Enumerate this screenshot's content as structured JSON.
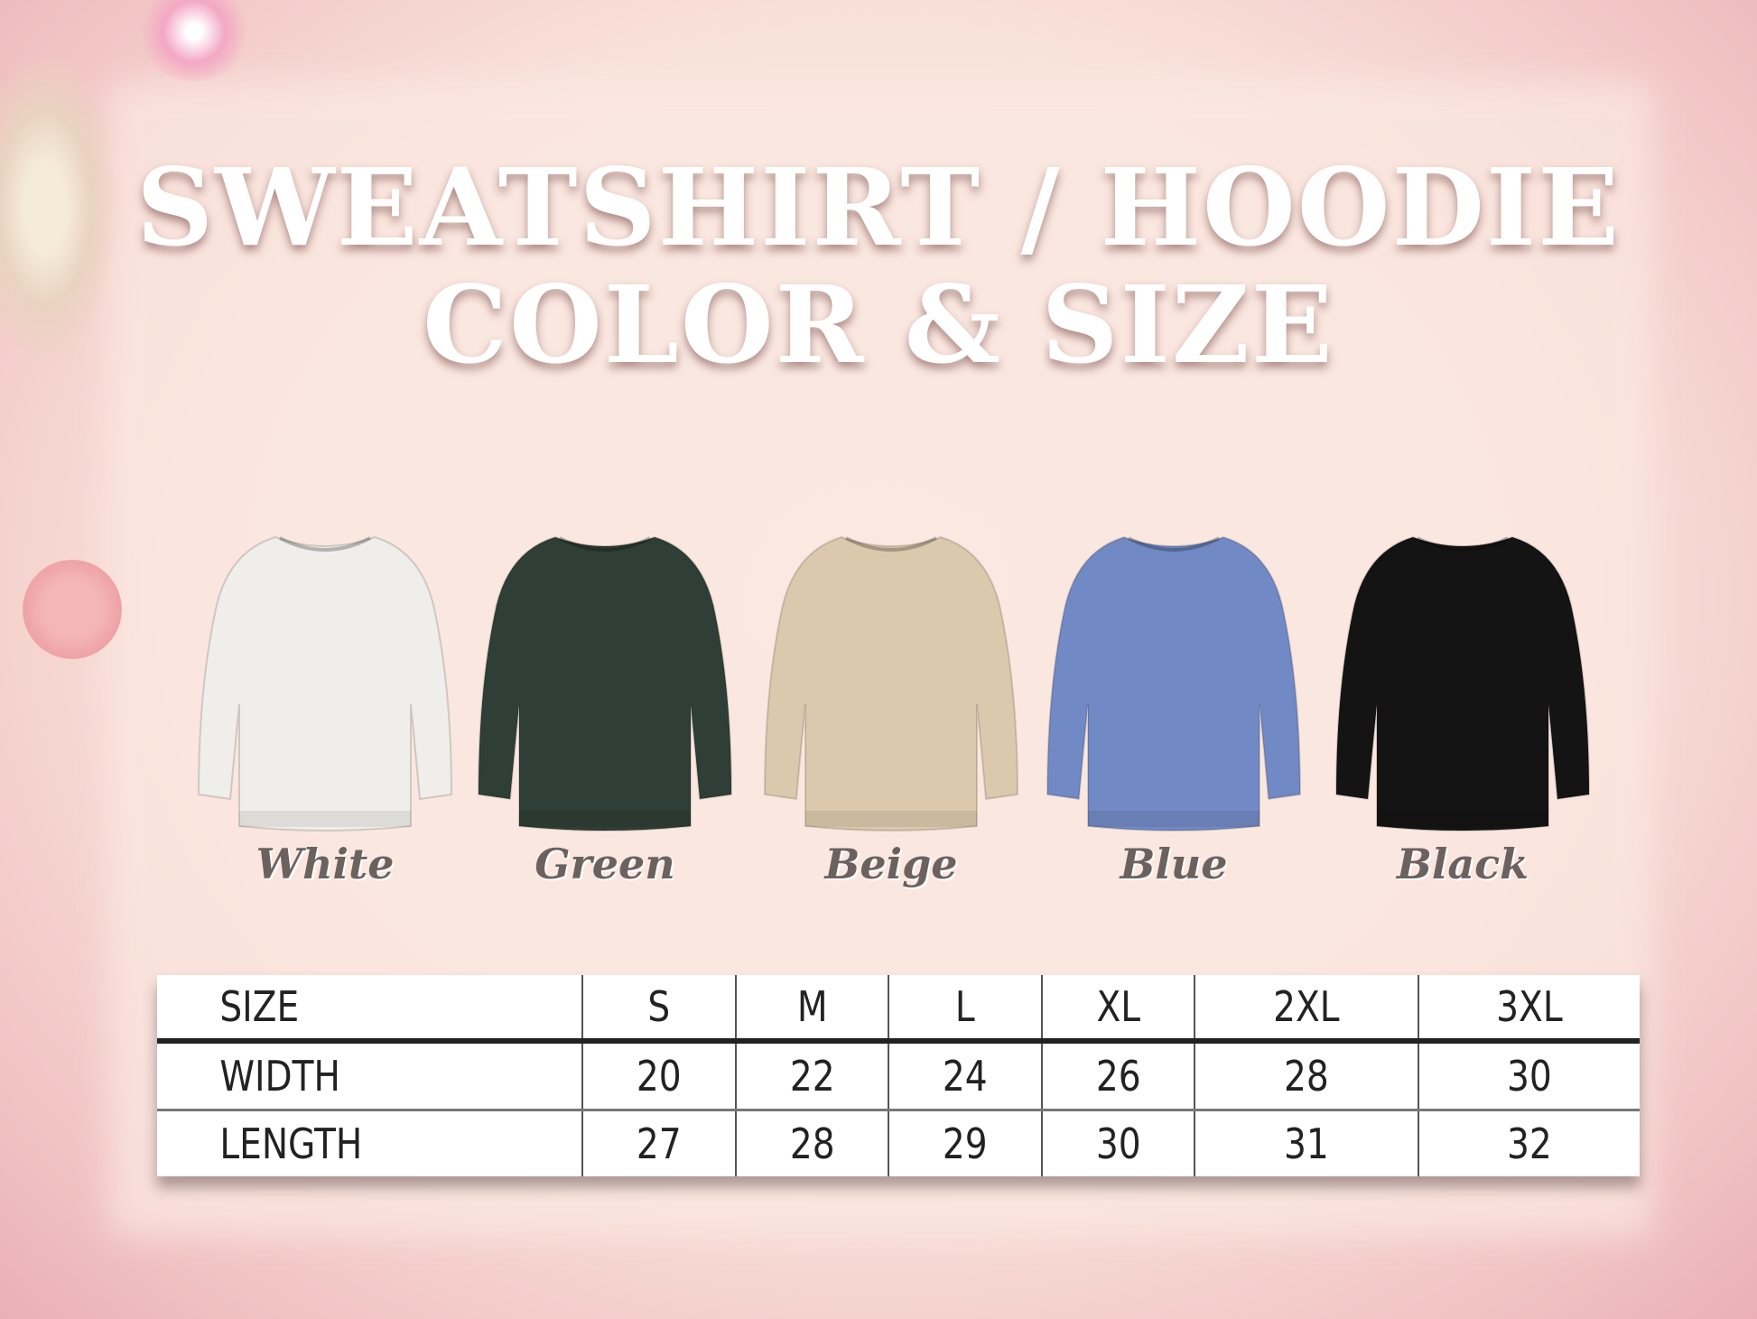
{
  "title": {
    "line1": "SWEATSHIRT / HOODIE",
    "line2": "COLOR & SIZE"
  },
  "colors": [
    {
      "label": "White",
      "hex": "#efeeea"
    },
    {
      "label": "Green",
      "hex": "#2f3e36"
    },
    {
      "label": "Beige",
      "hex": "#dcc8ad"
    },
    {
      "label": "Blue",
      "hex": "#7189c4"
    },
    {
      "label": "Black",
      "hex": "#141414"
    }
  ],
  "size_table": {
    "headers": [
      "SIZE",
      "S",
      "M",
      "L",
      "XL",
      "2XL",
      "3XL"
    ],
    "rows": [
      [
        "WIDTH",
        "20",
        "22",
        "24",
        "26",
        "28",
        "30"
      ],
      [
        "LENGTH",
        "27",
        "28",
        "29",
        "30",
        "31",
        "32"
      ]
    ]
  }
}
